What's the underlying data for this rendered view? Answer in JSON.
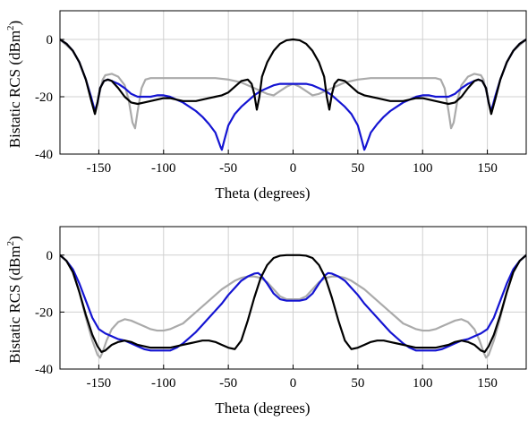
{
  "chart_data": [
    {
      "type": "line",
      "xlabel": "Theta (degrees)",
      "ylabel_main": "Bistatic RCS (dBm",
      "ylabel_sup": "2",
      "ylabel_close": ")",
      "xlim": [
        -180,
        180
      ],
      "ylim": [
        -40,
        10
      ],
      "xticks": [
        -150,
        -100,
        -50,
        0,
        50,
        100,
        150
      ],
      "yticks": [
        0,
        -20,
        -40
      ],
      "grid": true,
      "series": [
        {
          "color": "#aaaaaa",
          "x": [
            -180,
            -175,
            -170,
            -165,
            -160,
            -156,
            -153,
            -150,
            -147,
            -145,
            -140,
            -135,
            -130,
            -127,
            -124,
            -122,
            -120,
            -117,
            -114,
            -110,
            -100,
            -90,
            -80,
            -70,
            -60,
            -50,
            -40,
            -30,
            -20,
            -15,
            -10,
            -5,
            0,
            5,
            10,
            15,
            20,
            30,
            40,
            50,
            60,
            70,
            80,
            90,
            100,
            110,
            114,
            117,
            120,
            122,
            124,
            127,
            130,
            135,
            140,
            145,
            147,
            150,
            153,
            156,
            160,
            165,
            170,
            175,
            180
          ],
          "y": [
            0,
            -2,
            -4,
            -8,
            -14,
            -21,
            -26,
            -20,
            -14,
            -12.5,
            -12,
            -13,
            -16,
            -21,
            -29,
            -31,
            -25,
            -17,
            -14,
            -13.5,
            -13.5,
            -13.5,
            -13.5,
            -13.5,
            -13.5,
            -14,
            -15,
            -17,
            -19,
            -19.5,
            -18,
            -16.5,
            -15.5,
            -16.5,
            -18,
            -19.5,
            -19,
            -17,
            -15,
            -14,
            -13.5,
            -13.5,
            -13.5,
            -13.5,
            -13.5,
            -13.5,
            -14,
            -17,
            -25,
            -31,
            -29,
            -21,
            -16,
            -13,
            -12,
            -12.5,
            -14,
            -20,
            -26,
            -21,
            -14,
            -8,
            -4,
            -2,
            0
          ]
        },
        {
          "color": "#1414d2",
          "x": [
            -180,
            -175,
            -170,
            -165,
            -160,
            -156,
            -153,
            -151,
            -149,
            -146,
            -143,
            -140,
            -135,
            -130,
            -125,
            -120,
            -115,
            -110,
            -105,
            -100,
            -95,
            -90,
            -85,
            -80,
            -75,
            -70,
            -65,
            -60,
            -58,
            -56,
            -55,
            -53,
            -50,
            -45,
            -40,
            -35,
            -30,
            -25,
            -20,
            -15,
            -10,
            -5,
            0,
            5,
            10,
            15,
            20,
            25,
            30,
            35,
            40,
            45,
            50,
            53,
            55,
            56,
            58,
            60,
            65,
            70,
            75,
            80,
            85,
            90,
            95,
            100,
            105,
            110,
            115,
            120,
            125,
            130,
            135,
            140,
            143,
            146,
            149,
            151,
            153,
            156,
            160,
            165,
            170,
            175,
            180
          ],
          "y": [
            0,
            -1.5,
            -4,
            -8,
            -14,
            -20,
            -25,
            -22,
            -17,
            -14.5,
            -14,
            -14.5,
            -15.5,
            -17,
            -19,
            -20,
            -20,
            -20,
            -19.5,
            -19.5,
            -20,
            -21,
            -22,
            -23.5,
            -25,
            -27,
            -29.5,
            -32.5,
            -35,
            -37.5,
            -38.5,
            -35,
            -30,
            -26,
            -23.5,
            -21.5,
            -19.5,
            -18,
            -17,
            -16,
            -15.5,
            -15.5,
            -15.5,
            -15.5,
            -15.5,
            -16,
            -17,
            -18,
            -19.5,
            -21.5,
            -23.5,
            -26,
            -30,
            -35,
            -38.5,
            -37.5,
            -35,
            -32.5,
            -29.5,
            -27,
            -25,
            -23.5,
            -22,
            -21,
            -20,
            -19.5,
            -19.5,
            -20,
            -20,
            -20,
            -19,
            -17,
            -15.5,
            -14.5,
            -14,
            -14.5,
            -17,
            -22,
            -25,
            -20,
            -14,
            -8,
            -4,
            -1.5,
            0
          ]
        },
        {
          "color": "#000000",
          "x": [
            -180,
            -175,
            -170,
            -165,
            -160,
            -156,
            -153,
            -151,
            -149,
            -146,
            -143,
            -140,
            -135,
            -130,
            -125,
            -120,
            -115,
            -110,
            -105,
            -100,
            -95,
            -90,
            -85,
            -80,
            -75,
            -70,
            -65,
            -60,
            -55,
            -50,
            -45,
            -40,
            -35,
            -32,
            -30,
            -28,
            -26,
            -24,
            -20,
            -15,
            -10,
            -5,
            0,
            5,
            10,
            15,
            20,
            24,
            26,
            28,
            30,
            32,
            35,
            40,
            45,
            50,
            55,
            60,
            65,
            70,
            75,
            80,
            85,
            90,
            95,
            100,
            105,
            110,
            115,
            120,
            125,
            130,
            135,
            140,
            143,
            146,
            149,
            151,
            153,
            156,
            160,
            165,
            170,
            175,
            180
          ],
          "y": [
            0,
            -1.5,
            -4,
            -8,
            -14,
            -21,
            -26,
            -22,
            -17,
            -14.5,
            -14,
            -14.5,
            -17,
            -20,
            -22,
            -22.5,
            -22,
            -21.5,
            -21,
            -20.5,
            -20.5,
            -21,
            -21.5,
            -21.5,
            -21.5,
            -21,
            -20.5,
            -20,
            -19.5,
            -18.5,
            -16.5,
            -14.5,
            -14,
            -15.5,
            -19,
            -24.5,
            -20,
            -13,
            -8,
            -4,
            -1.5,
            -0.3,
            0,
            -0.3,
            -1.5,
            -4,
            -8,
            -13,
            -20,
            -24.5,
            -19,
            -15.5,
            -14,
            -14.5,
            -16.5,
            -18.5,
            -19.5,
            -20,
            -20.5,
            -21,
            -21.5,
            -21.5,
            -21.5,
            -21,
            -20.5,
            -20.5,
            -21,
            -21.5,
            -22,
            -22.5,
            -22,
            -20,
            -17,
            -14.5,
            -14,
            -14.5,
            -17,
            -22,
            -26,
            -21,
            -14,
            -8,
            -4,
            -1.5,
            0
          ]
        }
      ]
    },
    {
      "type": "line",
      "xlabel": "Theta (degrees)",
      "ylabel_main": "Bistatic RCS (dBm",
      "ylabel_sup": "2",
      "ylabel_close": ")",
      "xlim": [
        -180,
        180
      ],
      "ylim": [
        -40,
        10
      ],
      "xticks": [
        -150,
        -100,
        -50,
        0,
        50,
        100,
        150
      ],
      "yticks": [
        0,
        -20,
        -40
      ],
      "grid": true,
      "series": [
        {
          "color": "#aaaaaa",
          "x": [
            -180,
            -175,
            -170,
            -165,
            -160,
            -155,
            -151,
            -149,
            -147,
            -144,
            -140,
            -135,
            -130,
            -125,
            -120,
            -115,
            -110,
            -105,
            -100,
            -95,
            -90,
            -85,
            -80,
            -75,
            -70,
            -65,
            -60,
            -55,
            -50,
            -45,
            -40,
            -35,
            -30,
            -25,
            -20,
            -15,
            -10,
            -5,
            0,
            5,
            10,
            15,
            20,
            25,
            30,
            35,
            40,
            45,
            50,
            55,
            60,
            65,
            70,
            75,
            80,
            85,
            90,
            95,
            100,
            105,
            110,
            115,
            120,
            125,
            130,
            135,
            140,
            144,
            147,
            149,
            151,
            155,
            160,
            165,
            170,
            175,
            180
          ],
          "y": [
            0,
            -2,
            -6,
            -13,
            -22,
            -30,
            -35,
            -36,
            -34,
            -30,
            -26,
            -23.5,
            -22.5,
            -23,
            -24,
            -25,
            -26,
            -26.5,
            -26.5,
            -26,
            -25,
            -24,
            -22,
            -20,
            -18,
            -16,
            -14,
            -12,
            -10.5,
            -9,
            -8,
            -7.5,
            -7.5,
            -8,
            -9.5,
            -12,
            -14.5,
            -15.5,
            -15.5,
            -15.5,
            -14.5,
            -12,
            -9.5,
            -8,
            -7.5,
            -7.5,
            -8,
            -9,
            -10.5,
            -12,
            -14,
            -16,
            -18,
            -20,
            -22,
            -24,
            -25,
            -26,
            -26.5,
            -26.5,
            -26,
            -25,
            -24,
            -23,
            -22.5,
            -23.5,
            -26,
            -30,
            -34,
            -36,
            -35,
            -30,
            -22,
            -13,
            -6,
            -2,
            0
          ]
        },
        {
          "color": "#1414d2",
          "x": [
            -180,
            -175,
            -170,
            -165,
            -160,
            -155,
            -150,
            -145,
            -140,
            -135,
            -130,
            -125,
            -120,
            -115,
            -110,
            -105,
            -100,
            -95,
            -90,
            -85,
            -80,
            -75,
            -70,
            -65,
            -60,
            -55,
            -50,
            -45,
            -40,
            -35,
            -30,
            -27,
            -25,
            -20,
            -15,
            -10,
            -5,
            0,
            5,
            10,
            15,
            20,
            25,
            27,
            30,
            35,
            40,
            45,
            50,
            55,
            60,
            65,
            70,
            75,
            80,
            85,
            90,
            95,
            100,
            105,
            110,
            115,
            120,
            125,
            130,
            135,
            140,
            145,
            150,
            155,
            160,
            165,
            170,
            175,
            180
          ],
          "y": [
            0,
            -2,
            -5,
            -10,
            -16,
            -22,
            -26,
            -27.5,
            -28.5,
            -29.5,
            -30,
            -31,
            -32,
            -33,
            -33.5,
            -33.5,
            -33.5,
            -33.5,
            -32.5,
            -31,
            -29,
            -27,
            -24.5,
            -22,
            -19.5,
            -17,
            -14,
            -11.5,
            -9,
            -7.5,
            -6.5,
            -6.3,
            -7,
            -10,
            -13.5,
            -15.5,
            -16,
            -16,
            -16,
            -15.5,
            -13.5,
            -10,
            -7,
            -6.3,
            -6.5,
            -7.5,
            -9,
            -11.5,
            -14,
            -17,
            -19.5,
            -22,
            -24.5,
            -27,
            -29,
            -31,
            -32.5,
            -33.5,
            -33.5,
            -33.5,
            -33.5,
            -33,
            -32,
            -31,
            -30,
            -29.5,
            -28.5,
            -27.5,
            -26,
            -22,
            -16,
            -10,
            -5,
            -2,
            0
          ]
        },
        {
          "color": "#000000",
          "x": [
            -180,
            -175,
            -170,
            -165,
            -160,
            -155,
            -151,
            -148,
            -145,
            -140,
            -135,
            -130,
            -125,
            -120,
            -115,
            -110,
            -105,
            -100,
            -95,
            -90,
            -85,
            -80,
            -75,
            -70,
            -65,
            -60,
            -55,
            -50,
            -45,
            -40,
            -35,
            -30,
            -25,
            -20,
            -15,
            -10,
            -5,
            0,
            5,
            10,
            15,
            20,
            25,
            30,
            35,
            40,
            45,
            50,
            55,
            60,
            65,
            70,
            75,
            80,
            85,
            90,
            95,
            100,
            105,
            110,
            115,
            120,
            125,
            130,
            135,
            140,
            145,
            148,
            151,
            155,
            160,
            165,
            170,
            175,
            180
          ],
          "y": [
            0,
            -2,
            -6,
            -13,
            -21,
            -28,
            -32,
            -34,
            -33.5,
            -31.5,
            -30.5,
            -30,
            -30.5,
            -31.5,
            -32,
            -32.5,
            -32.5,
            -32.5,
            -32.5,
            -32,
            -31.5,
            -31,
            -30.5,
            -30,
            -30,
            -30.5,
            -31.5,
            -32.5,
            -33,
            -30,
            -23,
            -15,
            -8,
            -3.5,
            -1,
            -0.2,
            0,
            0,
            0,
            -0.2,
            -1,
            -3.5,
            -8,
            -15,
            -23,
            -30,
            -33,
            -32.5,
            -31.5,
            -30.5,
            -30,
            -30,
            -30.5,
            -31,
            -31.5,
            -32,
            -32.5,
            -32.5,
            -32.5,
            -32.5,
            -32,
            -31.5,
            -30.5,
            -30,
            -30.5,
            -31.5,
            -33.5,
            -34,
            -32,
            -28,
            -21,
            -13,
            -6,
            -2,
            0
          ]
        }
      ]
    }
  ]
}
